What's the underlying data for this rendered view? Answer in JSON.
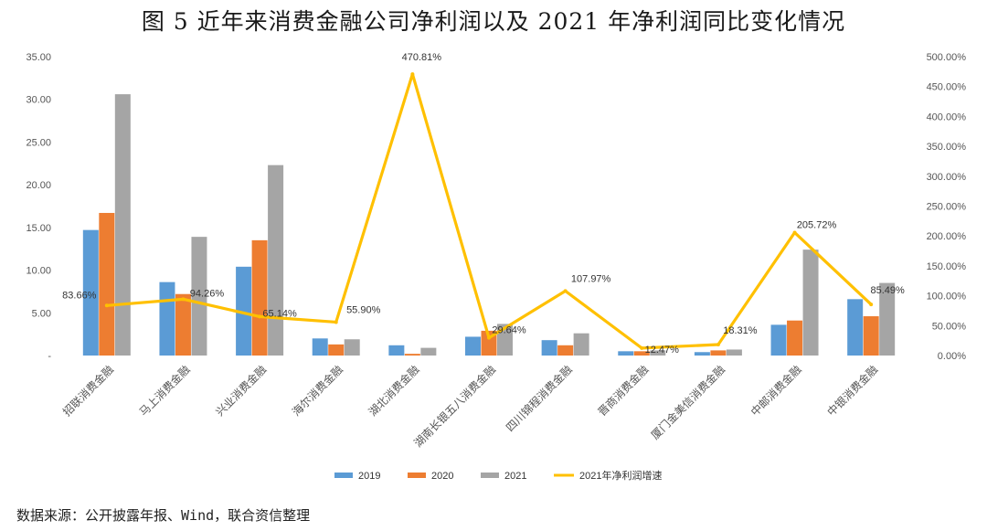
{
  "title": "图 5   近年来消费金融公司净利润以及 2021 年净利润同比变化情况",
  "source": "数据来源：公开披露年报、Wind，联合资信整理",
  "colors": {
    "s2019": "#5B9BD5",
    "s2020": "#ED7D31",
    "s2021": "#A5A5A5",
    "growth": "#FFC000"
  },
  "chart_data": {
    "type": "bar",
    "categories": [
      "招联消费金融",
      "马上消费金融",
      "兴业消费金融",
      "海尔消费金融",
      "湖北消费金融",
      "湖南长银五八消费金融",
      "四川锦程消费金融",
      "晋商消费金融",
      "厦门金美信消费金融",
      "中邮消费金融",
      "中银消费金融"
    ],
    "series": [
      {
        "name": "2019",
        "axis": "left",
        "values": [
          14.7,
          8.6,
          10.4,
          2.0,
          1.2,
          2.2,
          1.8,
          0.5,
          0.4,
          3.6,
          6.6
        ]
      },
      {
        "name": "2020",
        "axis": "left",
        "values": [
          16.7,
          7.2,
          13.5,
          1.3,
          0.2,
          2.9,
          1.2,
          0.5,
          0.6,
          4.1,
          4.6
        ]
      },
      {
        "name": "2021",
        "axis": "left",
        "values": [
          30.6,
          13.9,
          22.3,
          1.9,
          0.9,
          3.7,
          2.6,
          0.6,
          0.7,
          12.4,
          8.5
        ]
      },
      {
        "name": "2021年净利润增速",
        "axis": "right",
        "type": "line",
        "values": [
          83.66,
          94.26,
          65.14,
          55.9,
          470.81,
          29.64,
          107.97,
          12.47,
          18.31,
          205.72,
          85.49
        ]
      }
    ],
    "growth_labels": [
      "83.66%",
      "94.26%",
      "65.14%",
      "55.90%",
      "470.81%",
      "29.64%",
      "107.97%",
      "12.47%",
      "18.31%",
      "205.72%",
      "85.49%"
    ],
    "left_axis": {
      "ylim": [
        0,
        35
      ],
      "ticks": [
        "-",
        "5.00",
        "10.00",
        "15.00",
        "20.00",
        "25.00",
        "30.00",
        "35.00"
      ]
    },
    "right_axis": {
      "ylim": [
        0,
        500
      ],
      "ticks": [
        "0.00%",
        "50.00%",
        "100.00%",
        "150.00%",
        "200.00%",
        "250.00%",
        "300.00%",
        "350.00%",
        "400.00%",
        "450.00%",
        "500.00%"
      ]
    },
    "legend": [
      "2019",
      "2020",
      "2021",
      "2021年净利润增速"
    ],
    "legend_position": "bottom"
  }
}
